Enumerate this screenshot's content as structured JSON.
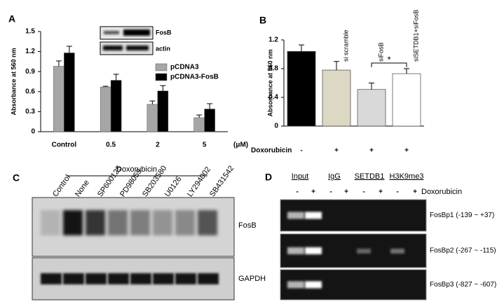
{
  "chart_data": [
    {
      "type": "bar",
      "label": "A",
      "ylabel": "Absorbance  at 560 nm",
      "categories": [
        "Control",
        "0.5",
        "2",
        "5"
      ],
      "xunit": "(μM)",
      "series": [
        {
          "name": "pCDNA3",
          "color": "#a6a6a6",
          "values": [
            0.98,
            0.67,
            0.41,
            0.21
          ],
          "errors": [
            0.08,
            0.01,
            0.05,
            0.04
          ]
        },
        {
          "name": "pCDNA3-FosB",
          "color": "#000000",
          "values": [
            1.18,
            0.77,
            0.61,
            0.34
          ],
          "errors": [
            0.1,
            0.09,
            0.08,
            0.08
          ]
        }
      ],
      "ylim": [
        0,
        1.5
      ],
      "yticks": [
        0,
        0.3,
        0.6,
        0.9,
        1.2,
        1.5
      ],
      "inset": [
        "FosB",
        "actin"
      ]
    },
    {
      "type": "bar",
      "label": "B",
      "ylabel": "Absorbance  at 560 nm",
      "categories": [
        null,
        "si scramble",
        "siFosB",
        "siSETDB1+siFosB"
      ],
      "values": [
        1.04,
        0.78,
        0.51,
        0.73
      ],
      "errors": [
        0.09,
        0.12,
        0.09,
        0.07
      ],
      "colors": [
        "#000000",
        "#ddd8c4",
        "#d9d9d9",
        "#ffffff"
      ],
      "xlabel": "Doxorubicin",
      "treatment": [
        "-",
        "+",
        "+",
        "+"
      ],
      "annotation": "*",
      "ylim": [
        0,
        1.2
      ],
      "yticks": [
        0,
        0.4,
        0.8,
        1.2
      ]
    }
  ],
  "panel_c": {
    "label": "C",
    "treatment": "Doxorubicin",
    "lanes": [
      "Control",
      "None",
      "SP600125",
      "PD98059",
      "SB203580",
      "U0126",
      "LY294002",
      "SB431542"
    ],
    "blots": [
      "FosB",
      "GAPDH"
    ]
  },
  "panel_d": {
    "label": "D",
    "groups": [
      "Input",
      "IgG",
      "SETDB1",
      "H3K9me3"
    ],
    "signs": [
      "-",
      "+",
      "-",
      "+",
      "-",
      "+",
      "-",
      "+"
    ],
    "treatment": "Doxorubicin",
    "rows": [
      "FosBp1 (-139 ~ +37)",
      "FosBp2 (-267 ~ -115)",
      "FosBp3 (-827 ~ -607)"
    ]
  }
}
